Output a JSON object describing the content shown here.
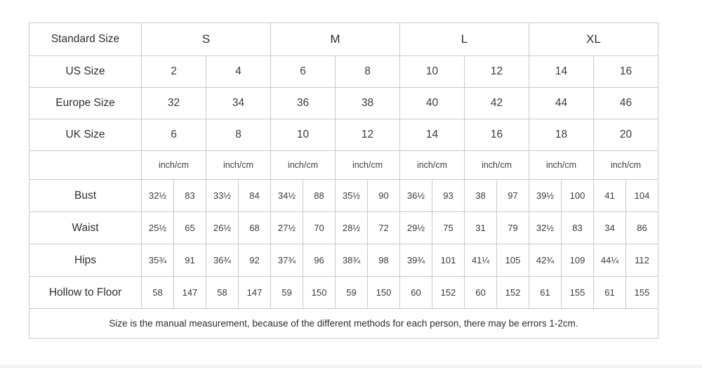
{
  "chart_data": {
    "type": "table",
    "standard_size_row": {
      "label": "Standard Size",
      "groups": [
        "S",
        "M",
        "L",
        "XL"
      ]
    },
    "size_rows": [
      {
        "label": "US Size",
        "values": [
          "2",
          "4",
          "6",
          "8",
          "10",
          "12",
          "14",
          "16"
        ]
      },
      {
        "label": "Europe Size",
        "values": [
          "32",
          "34",
          "36",
          "38",
          "40",
          "42",
          "44",
          "46"
        ]
      },
      {
        "label": "UK Size",
        "values": [
          "6",
          "8",
          "10",
          "12",
          "14",
          "16",
          "18",
          "20"
        ]
      }
    ],
    "unit_row": {
      "label": "",
      "units": [
        "inch/cm",
        "inch/cm",
        "inch/cm",
        "inch/cm",
        "inch/cm",
        "inch/cm",
        "inch/cm",
        "inch/cm"
      ]
    },
    "measurement_rows": [
      {
        "label": "Bust",
        "values": [
          "32½",
          "83",
          "33½",
          "84",
          "34½",
          "88",
          "35½",
          "90",
          "36½",
          "93",
          "38",
          "97",
          "39½",
          "100",
          "41",
          "104"
        ]
      },
      {
        "label": "Waist",
        "values": [
          "25½",
          "65",
          "26½",
          "68",
          "27½",
          "70",
          "28½",
          "72",
          "29½",
          "75",
          "31",
          "79",
          "32½",
          "83",
          "34",
          "86"
        ]
      },
      {
        "label": "Hips",
        "values": [
          "35¾",
          "91",
          "36¾",
          "92",
          "37¾",
          "96",
          "38¾",
          "98",
          "39¾",
          "101",
          "41¼",
          "105",
          "42¾",
          "109",
          "44¼",
          "112"
        ]
      },
      {
        "label": "Hollow to Floor",
        "values": [
          "58",
          "147",
          "58",
          "147",
          "59",
          "150",
          "59",
          "150",
          "60",
          "152",
          "60",
          "152",
          "61",
          "155",
          "61",
          "155"
        ]
      }
    ],
    "footer_note": "Size is the manual measurement, because of the different methods for each person, there may be errors 1-2cm."
  },
  "colors": {
    "border": "#c9c9c9",
    "text": "#3b3b3b",
    "background": "#ffffff"
  }
}
